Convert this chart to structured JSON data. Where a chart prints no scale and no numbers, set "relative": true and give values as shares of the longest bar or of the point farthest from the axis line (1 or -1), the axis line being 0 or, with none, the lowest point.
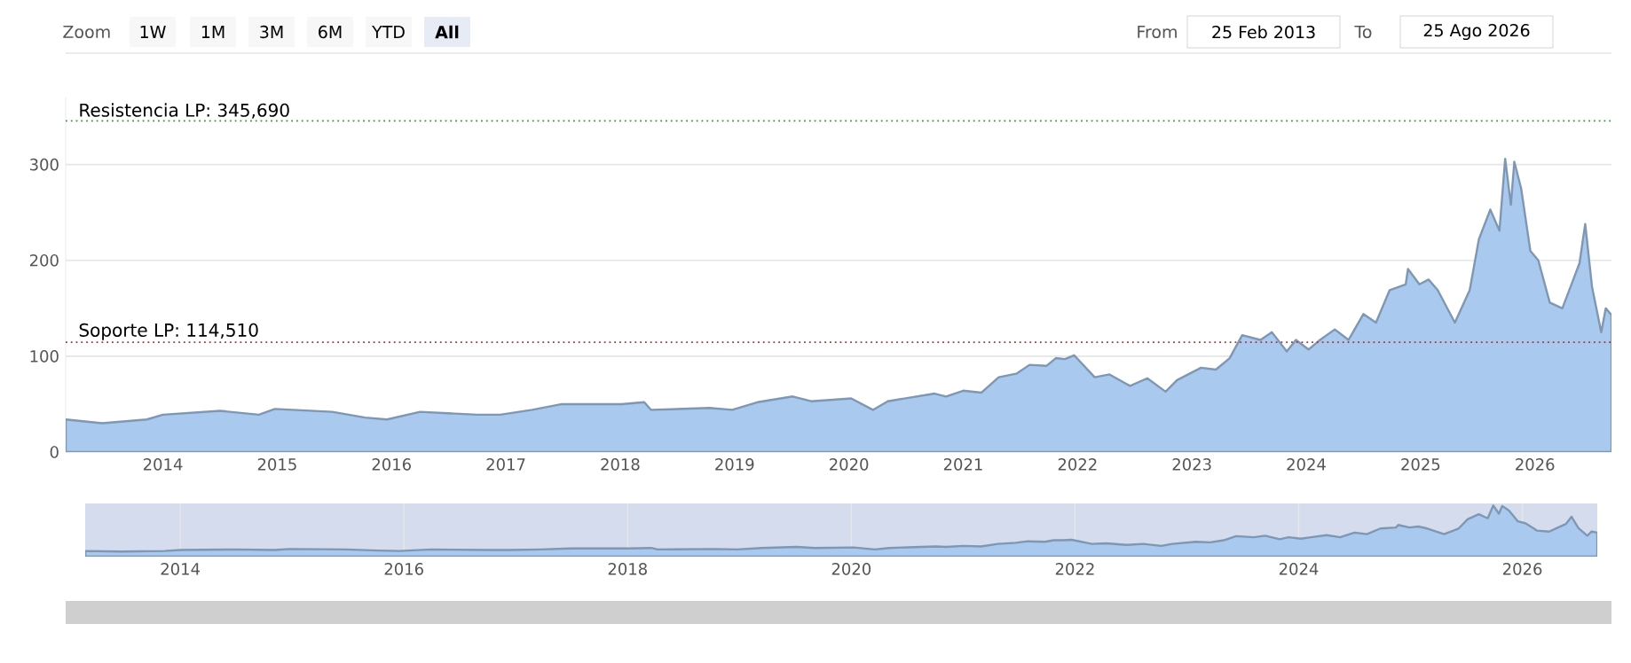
{
  "chart_data": [
    {
      "type": "area",
      "color": "#a9c9ee",
      "x": [
        2013.15,
        2013.47,
        2013.86,
        2014.0,
        2014.5,
        2014.84,
        2014.98,
        2015.48,
        2015.77,
        2015.96,
        2016.25,
        2016.75,
        2016.95,
        2017.23,
        2017.49,
        2018.01,
        2018.21,
        2018.27,
        2018.78,
        2018.98,
        2019.2,
        2019.51,
        2019.67,
        2020.02,
        2020.21,
        2020.34,
        2020.75,
        2020.85,
        2021.0,
        2021.16,
        2021.31,
        2021.47,
        2021.58,
        2021.73,
        2021.81,
        2021.89,
        2021.97,
        2022.15,
        2022.28,
        2022.46,
        2022.61,
        2022.77,
        2022.87,
        2023.08,
        2023.21,
        2023.33,
        2023.44,
        2023.6,
        2023.7,
        2023.83,
        2023.91,
        2024.02,
        2024.11,
        2024.25,
        2024.37,
        2024.5,
        2024.61,
        2024.73,
        2024.87,
        2024.89,
        2024.99,
        2025.07,
        2025.15,
        2025.3,
        2025.43,
        2025.51,
        2025.61,
        2025.69,
        2025.74,
        2025.79,
        2025.82,
        2025.88,
        2025.96,
        2026.03,
        2026.13,
        2026.24,
        2026.31,
        2026.39,
        2026.44,
        2026.5,
        2026.58,
        2026.62,
        2026.67
      ],
      "values": [
        34,
        30,
        34,
        39,
        43,
        39,
        45,
        42,
        36,
        34,
        42,
        39,
        39,
        44,
        50,
        50,
        52,
        44,
        46,
        44,
        52,
        58,
        53,
        56,
        44,
        53,
        61,
        58,
        64,
        62,
        78,
        82,
        91,
        90,
        98,
        97,
        101,
        78,
        81,
        69,
        77,
        63,
        75,
        88,
        86,
        98,
        122,
        117,
        125,
        105,
        117,
        107,
        116,
        128,
        117,
        144,
        135,
        169,
        175,
        191,
        175,
        180,
        169,
        135,
        169,
        222,
        253,
        231,
        306,
        258,
        303,
        275,
        210,
        200,
        156,
        150,
        172,
        197,
        238,
        172,
        125,
        150,
        143
      ],
      "xlim": [
        2013.15,
        2026.67
      ],
      "ylim": [
        0,
        370
      ],
      "xticks": [
        2014,
        2015,
        2016,
        2017,
        2018,
        2019,
        2020,
        2021,
        2022,
        2023,
        2024,
        2025,
        2026
      ],
      "yticks": [
        0,
        100,
        200,
        300
      ],
      "grid": "y",
      "ref_lines": [
        {
          "axis": "y",
          "value": 345.69,
          "label": "Resistencia LP: 345,690",
          "color": "#339933",
          "line_style": "dotted"
        },
        {
          "axis": "y",
          "value": 114.51,
          "label": "Soporte LP: 114,510",
          "color": "#aa3333",
          "line_style": "dotted"
        }
      ],
      "annotations": [
        "Zoom",
        "1W",
        "1M",
        "3M",
        "6M",
        "YTD",
        "All",
        "From",
        "25 Feb 2013",
        "To",
        "25 Ago 2026"
      ]
    },
    {
      "type": "area",
      "color": "#a9c9ee",
      "relative": true,
      "x": [
        2013.15,
        2013.47,
        2013.86,
        2014.0,
        2014.5,
        2014.84,
        2014.98,
        2015.48,
        2015.77,
        2015.96,
        2016.25,
        2016.75,
        2016.95,
        2017.23,
        2017.49,
        2018.01,
        2018.21,
        2018.27,
        2018.78,
        2018.98,
        2019.2,
        2019.51,
        2019.67,
        2020.02,
        2020.21,
        2020.34,
        2020.75,
        2020.85,
        2021.0,
        2021.16,
        2021.31,
        2021.47,
        2021.58,
        2021.73,
        2021.81,
        2021.89,
        2021.97,
        2022.15,
        2022.28,
        2022.46,
        2022.61,
        2022.77,
        2022.87,
        2023.08,
        2023.21,
        2023.33,
        2023.44,
        2023.6,
        2023.7,
        2023.83,
        2023.91,
        2024.02,
        2024.11,
        2024.25,
        2024.37,
        2024.5,
        2024.61,
        2024.73,
        2024.87,
        2024.89,
        2024.99,
        2025.07,
        2025.15,
        2025.3,
        2025.43,
        2025.51,
        2025.61,
        2025.69,
        2025.74,
        2025.79,
        2025.82,
        2025.88,
        2025.96,
        2026.03,
        2026.13,
        2026.24,
        2026.31,
        2026.39,
        2026.44,
        2026.5,
        2026.58,
        2026.62,
        2026.67
      ],
      "values": [
        0.11,
        0.1,
        0.11,
        0.13,
        0.14,
        0.13,
        0.15,
        0.14,
        0.12,
        0.11,
        0.14,
        0.13,
        0.13,
        0.14,
        0.16,
        0.16,
        0.17,
        0.14,
        0.15,
        0.14,
        0.17,
        0.19,
        0.17,
        0.18,
        0.14,
        0.17,
        0.2,
        0.19,
        0.21,
        0.2,
        0.25,
        0.27,
        0.3,
        0.29,
        0.32,
        0.32,
        0.33,
        0.25,
        0.26,
        0.23,
        0.25,
        0.21,
        0.25,
        0.29,
        0.28,
        0.32,
        0.4,
        0.38,
        0.41,
        0.34,
        0.38,
        0.35,
        0.38,
        0.42,
        0.38,
        0.47,
        0.44,
        0.55,
        0.57,
        0.62,
        0.57,
        0.59,
        0.55,
        0.44,
        0.55,
        0.73,
        0.83,
        0.75,
        1,
        0.84,
        0.99,
        0.9,
        0.69,
        0.65,
        0.51,
        0.49,
        0.56,
        0.64,
        0.78,
        0.56,
        0.41,
        0.49,
        0.47
      ],
      "xlim": [
        2013.15,
        2026.67
      ],
      "xticks": [
        2014,
        2016,
        2018,
        2020,
        2022,
        2024,
        2026
      ],
      "grid": "x",
      "tick_labels": "x"
    }
  ]
}
